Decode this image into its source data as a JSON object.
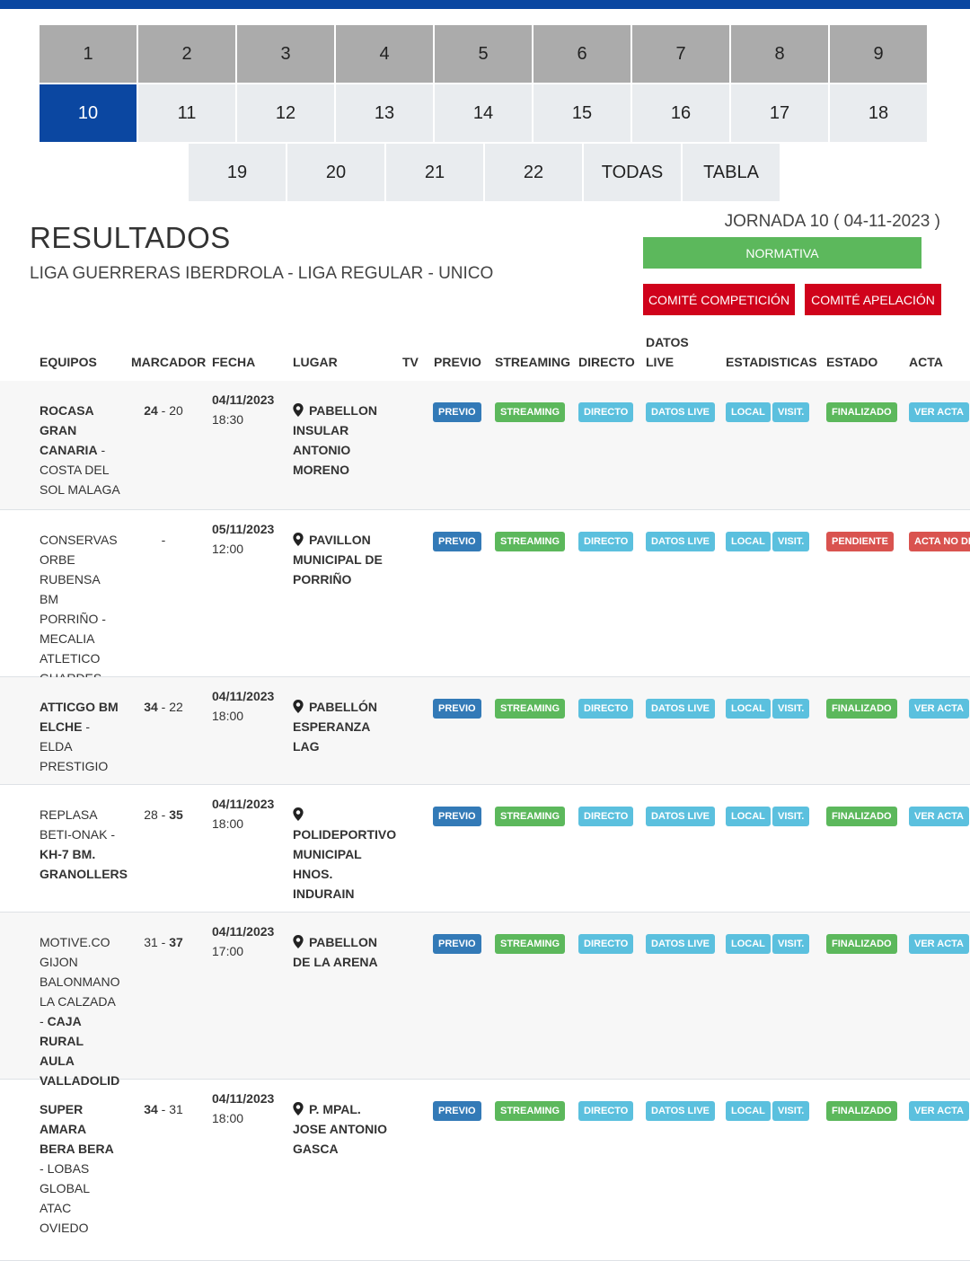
{
  "jornadas": {
    "row1": [
      "1",
      "2",
      "3",
      "4",
      "5",
      "6",
      "7",
      "8",
      "9"
    ],
    "row2": [
      "10",
      "11",
      "12",
      "13",
      "14",
      "15",
      "16",
      "17",
      "18"
    ],
    "row3": [
      "19",
      "20",
      "21",
      "22",
      "TODAS",
      "TABLA"
    ],
    "active": "10"
  },
  "header": {
    "title": "RESULTADOS",
    "subtitle": "LIGA GUERRERAS IBERDROLA - LIGA REGULAR - UNICO",
    "jornada": "JORNADA 10 ( 04-11-2023 )",
    "normativa": "NORMATIVA",
    "comite_competicion": "COMITÉ COMPETICIÓN",
    "comite_apelacion": "COMITÉ APELACIÓN"
  },
  "table": {
    "headers": {
      "equipos": "EQUIPOS",
      "marcador": "MARCADOR",
      "fecha": "FECHA",
      "lugar": "LUGAR",
      "tv": "TV",
      "previo": "PREVIO",
      "streaming": "STREAMING",
      "directo": "DIRECTO",
      "datos": "DATOS",
      "live": "LIVE",
      "estadisticas": "ESTADISTICAS",
      "estado": "ESTADO",
      "acta": "ACTA"
    },
    "labels": {
      "previo": "PREVIO",
      "streaming": "STREAMING",
      "directo": "DIRECTO",
      "datos_live": "DATOS LIVE",
      "local": "LOCAL",
      "visit": "VISIT."
    },
    "rows": [
      {
        "home": "ROCASA GRAN CANARIA",
        "away": "COSTA DEL SOL MALAGA",
        "home_score": "24",
        "away_score": "20",
        "winner": "home",
        "date": "04/11/2023",
        "time": "18:30",
        "venue": "PABELLON INSULAR ANTONIO MORENO",
        "estado": "FINALIZADO",
        "acta": "VER ACTA"
      },
      {
        "home": "CONSERVAS ORBE RUBENSA BM PORRIÑO",
        "away": "MECALIA ATLETICO GUARDES",
        "home_score": "",
        "away_score": "",
        "winner": "none",
        "date": "05/11/2023",
        "time": "12:00",
        "venue": "PAVILLON MUNICIPAL DE PORRIÑO",
        "estado": "PENDIENTE",
        "acta": "ACTA NO DIS"
      },
      {
        "home": "ATTICGO BM ELCHE",
        "away": "ELDA PRESTIGIO",
        "home_score": "34",
        "away_score": "22",
        "winner": "home",
        "date": "04/11/2023",
        "time": "18:00",
        "venue": "PABELLÓN ESPERANZA LAG",
        "estado": "FINALIZADO",
        "acta": "VER ACTA"
      },
      {
        "home": "REPLASA BETI-ONAK",
        "away": "KH-7 BM. GRANOLLERS",
        "home_score": "28",
        "away_score": "35",
        "winner": "away",
        "date": "04/11/2023",
        "time": "18:00",
        "venue": "POLIDEPORTIVO MUNICIPAL HNOS. INDURAIN",
        "estado": "FINALIZADO",
        "acta": "VER ACTA"
      },
      {
        "home": "MOTIVE.CO GIJON BALONMANO LA CALZADA",
        "away": "CAJA RURAL AULA VALLADOLID",
        "home_score": "31",
        "away_score": "37",
        "winner": "away",
        "date": "04/11/2023",
        "time": "17:00",
        "venue": "PABELLON DE LA ARENA",
        "estado": "FINALIZADO",
        "acta": "VER ACTA"
      },
      {
        "home": "SUPER AMARA BERA BERA",
        "away": "LOBAS GLOBAL ATAC OVIEDO",
        "home_score": "34",
        "away_score": "31",
        "winner": "home",
        "date": "04/11/2023",
        "time": "18:00",
        "venue": "P. MPAL. JOSE ANTONIO GASCA",
        "estado": "FINALIZADO",
        "acta": "VER ACTA"
      }
    ]
  },
  "colors": {
    "brand_blue": "#0b47a1",
    "normativa_green": "#5cb85c",
    "comite_red": "#d0021b",
    "previo_blue": "#337ab7",
    "teal": "#5bc0de",
    "finalizado_green": "#5cb85c",
    "pendiente_red": "#d9534f"
  }
}
